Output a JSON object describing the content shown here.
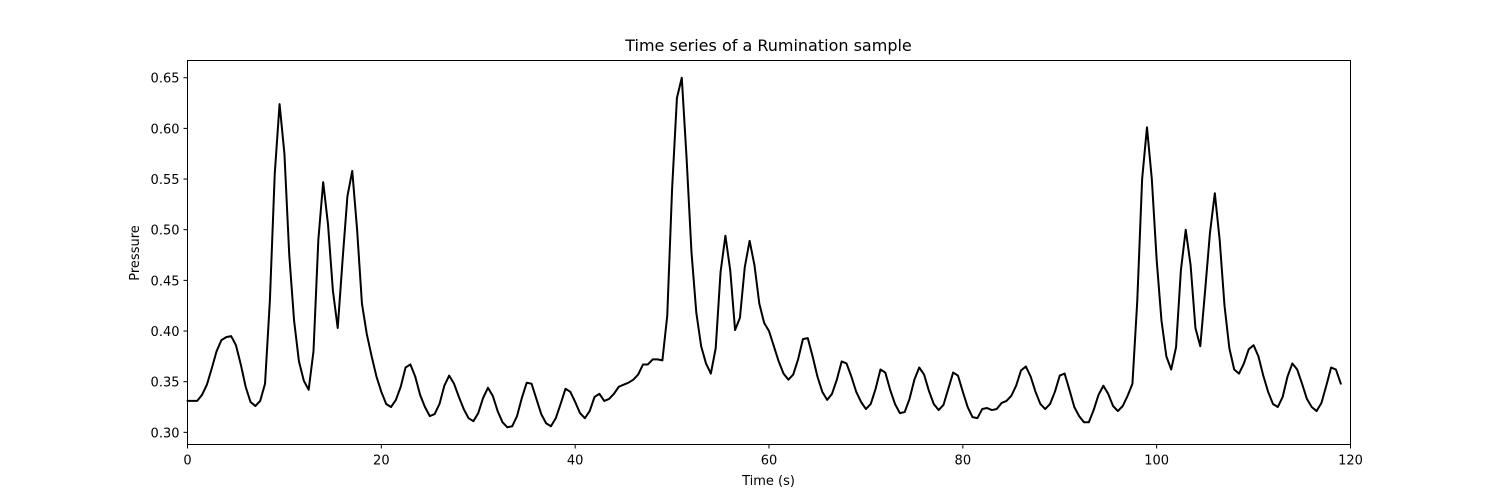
{
  "chart_data": {
    "type": "line",
    "title": "Time series of a Rumination sample",
    "xlabel": "Time (s)",
    "ylabel": "Pressure",
    "xlim": [
      0,
      120
    ],
    "ylim": [
      0.288,
      0.667
    ],
    "xticks": [
      0,
      20,
      40,
      60,
      80,
      100,
      120
    ],
    "yticks": [
      0.3,
      0.35,
      0.4,
      0.45,
      0.5,
      0.55,
      0.6,
      0.65
    ],
    "grid": false,
    "line_color": "#000000",
    "series": [
      {
        "points": [
          [
            0.0,
            0.331
          ],
          [
            0.5,
            0.331
          ],
          [
            1.0,
            0.331
          ],
          [
            1.5,
            0.337
          ],
          [
            2.0,
            0.347
          ],
          [
            2.5,
            0.363
          ],
          [
            3.0,
            0.38
          ],
          [
            3.5,
            0.391
          ],
          [
            4.0,
            0.394
          ],
          [
            4.5,
            0.395
          ],
          [
            5.0,
            0.386
          ],
          [
            5.5,
            0.367
          ],
          [
            6.0,
            0.345
          ],
          [
            6.5,
            0.33
          ],
          [
            7.0,
            0.326
          ],
          [
            7.5,
            0.331
          ],
          [
            8.0,
            0.348
          ],
          [
            8.5,
            0.43
          ],
          [
            9.0,
            0.555
          ],
          [
            9.5,
            0.624
          ],
          [
            10.0,
            0.575
          ],
          [
            10.5,
            0.475
          ],
          [
            11.0,
            0.41
          ],
          [
            11.5,
            0.37
          ],
          [
            12.0,
            0.351
          ],
          [
            12.5,
            0.342
          ],
          [
            13.0,
            0.38
          ],
          [
            13.5,
            0.49
          ],
          [
            14.0,
            0.547
          ],
          [
            14.5,
            0.505
          ],
          [
            15.0,
            0.44
          ],
          [
            15.5,
            0.403
          ],
          [
            16.0,
            0.47
          ],
          [
            16.5,
            0.533
          ],
          [
            17.0,
            0.558
          ],
          [
            17.5,
            0.5
          ],
          [
            18.0,
            0.427
          ],
          [
            18.5,
            0.397
          ],
          [
            19.0,
            0.375
          ],
          [
            19.5,
            0.355
          ],
          [
            20.0,
            0.34
          ],
          [
            20.5,
            0.328
          ],
          [
            21.0,
            0.325
          ],
          [
            21.5,
            0.332
          ],
          [
            22.0,
            0.345
          ],
          [
            22.5,
            0.364
          ],
          [
            23.0,
            0.367
          ],
          [
            23.5,
            0.355
          ],
          [
            24.0,
            0.337
          ],
          [
            24.5,
            0.325
          ],
          [
            25.0,
            0.316
          ],
          [
            25.5,
            0.318
          ],
          [
            26.0,
            0.328
          ],
          [
            26.5,
            0.346
          ],
          [
            27.0,
            0.356
          ],
          [
            27.5,
            0.348
          ],
          [
            28.0,
            0.335
          ],
          [
            28.5,
            0.323
          ],
          [
            29.0,
            0.314
          ],
          [
            29.5,
            0.311
          ],
          [
            30.0,
            0.319
          ],
          [
            30.5,
            0.334
          ],
          [
            31.0,
            0.344
          ],
          [
            31.5,
            0.336
          ],
          [
            32.0,
            0.321
          ],
          [
            32.5,
            0.31
          ],
          [
            33.0,
            0.305
          ],
          [
            33.5,
            0.306
          ],
          [
            34.0,
            0.316
          ],
          [
            34.5,
            0.334
          ],
          [
            35.0,
            0.349
          ],
          [
            35.5,
            0.348
          ],
          [
            36.0,
            0.333
          ],
          [
            36.5,
            0.318
          ],
          [
            37.0,
            0.309
          ],
          [
            37.5,
            0.306
          ],
          [
            38.0,
            0.314
          ],
          [
            38.5,
            0.328
          ],
          [
            39.0,
            0.343
          ],
          [
            39.5,
            0.34
          ],
          [
            40.0,
            0.33
          ],
          [
            40.5,
            0.319
          ],
          [
            41.0,
            0.314
          ],
          [
            41.5,
            0.321
          ],
          [
            42.0,
            0.335
          ],
          [
            42.5,
            0.338
          ],
          [
            43.0,
            0.331
          ],
          [
            43.5,
            0.333
          ],
          [
            44.0,
            0.338
          ],
          [
            44.5,
            0.345
          ],
          [
            45.0,
            0.347
          ],
          [
            45.5,
            0.349
          ],
          [
            46.0,
            0.352
          ],
          [
            46.5,
            0.357
          ],
          [
            47.0,
            0.367
          ],
          [
            47.5,
            0.367
          ],
          [
            48.0,
            0.372
          ],
          [
            48.5,
            0.372
          ],
          [
            49.0,
            0.371
          ],
          [
            49.5,
            0.415
          ],
          [
            50.0,
            0.54
          ],
          [
            50.5,
            0.63
          ],
          [
            51.0,
            0.65
          ],
          [
            51.5,
            0.57
          ],
          [
            52.0,
            0.478
          ],
          [
            52.5,
            0.418
          ],
          [
            53.0,
            0.385
          ],
          [
            53.5,
            0.368
          ],
          [
            54.0,
            0.358
          ],
          [
            54.5,
            0.383
          ],
          [
            55.0,
            0.458
          ],
          [
            55.5,
            0.494
          ],
          [
            56.0,
            0.46
          ],
          [
            56.5,
            0.401
          ],
          [
            57.0,
            0.413
          ],
          [
            57.5,
            0.463
          ],
          [
            58.0,
            0.489
          ],
          [
            58.5,
            0.465
          ],
          [
            59.0,
            0.427
          ],
          [
            59.5,
            0.408
          ],
          [
            60.0,
            0.4
          ],
          [
            60.5,
            0.385
          ],
          [
            61.0,
            0.37
          ],
          [
            61.5,
            0.358
          ],
          [
            62.0,
            0.352
          ],
          [
            62.5,
            0.357
          ],
          [
            63.0,
            0.372
          ],
          [
            63.5,
            0.392
          ],
          [
            64.0,
            0.393
          ],
          [
            64.5,
            0.375
          ],
          [
            65.0,
            0.355
          ],
          [
            65.5,
            0.34
          ],
          [
            66.0,
            0.332
          ],
          [
            66.5,
            0.338
          ],
          [
            67.0,
            0.352
          ],
          [
            67.5,
            0.37
          ],
          [
            68.0,
            0.368
          ],
          [
            68.5,
            0.355
          ],
          [
            69.0,
            0.34
          ],
          [
            69.5,
            0.33
          ],
          [
            70.0,
            0.323
          ],
          [
            70.5,
            0.328
          ],
          [
            71.0,
            0.343
          ],
          [
            71.5,
            0.362
          ],
          [
            72.0,
            0.359
          ],
          [
            72.5,
            0.342
          ],
          [
            73.0,
            0.328
          ],
          [
            73.5,
            0.319
          ],
          [
            74.0,
            0.32
          ],
          [
            74.5,
            0.333
          ],
          [
            75.0,
            0.352
          ],
          [
            75.5,
            0.364
          ],
          [
            76.0,
            0.357
          ],
          [
            76.5,
            0.341
          ],
          [
            77.0,
            0.328
          ],
          [
            77.5,
            0.322
          ],
          [
            78.0,
            0.327
          ],
          [
            78.5,
            0.343
          ],
          [
            79.0,
            0.359
          ],
          [
            79.5,
            0.356
          ],
          [
            80.0,
            0.34
          ],
          [
            80.5,
            0.325
          ],
          [
            81.0,
            0.315
          ],
          [
            81.5,
            0.314
          ],
          [
            82.0,
            0.323
          ],
          [
            82.5,
            0.324
          ],
          [
            83.0,
            0.322
          ],
          [
            83.5,
            0.323
          ],
          [
            84.0,
            0.329
          ],
          [
            84.5,
            0.331
          ],
          [
            85.0,
            0.336
          ],
          [
            85.5,
            0.346
          ],
          [
            86.0,
            0.361
          ],
          [
            86.5,
            0.365
          ],
          [
            87.0,
            0.355
          ],
          [
            87.5,
            0.34
          ],
          [
            88.0,
            0.328
          ],
          [
            88.5,
            0.323
          ],
          [
            89.0,
            0.328
          ],
          [
            89.5,
            0.34
          ],
          [
            90.0,
            0.356
          ],
          [
            90.5,
            0.358
          ],
          [
            91.0,
            0.342
          ],
          [
            91.5,
            0.325
          ],
          [
            92.0,
            0.316
          ],
          [
            92.5,
            0.31
          ],
          [
            93.0,
            0.31
          ],
          [
            93.5,
            0.322
          ],
          [
            94.0,
            0.337
          ],
          [
            94.5,
            0.346
          ],
          [
            95.0,
            0.338
          ],
          [
            95.5,
            0.326
          ],
          [
            96.0,
            0.321
          ],
          [
            96.5,
            0.326
          ],
          [
            97.0,
            0.336
          ],
          [
            97.5,
            0.348
          ],
          [
            98.0,
            0.43
          ],
          [
            98.5,
            0.55
          ],
          [
            99.0,
            0.601
          ],
          [
            99.5,
            0.55
          ],
          [
            100.0,
            0.47
          ],
          [
            100.5,
            0.41
          ],
          [
            101.0,
            0.375
          ],
          [
            101.5,
            0.362
          ],
          [
            102.0,
            0.384
          ],
          [
            102.5,
            0.46
          ],
          [
            103.0,
            0.5
          ],
          [
            103.5,
            0.465
          ],
          [
            104.0,
            0.403
          ],
          [
            104.5,
            0.385
          ],
          [
            105.0,
            0.44
          ],
          [
            105.5,
            0.497
          ],
          [
            106.0,
            0.536
          ],
          [
            106.5,
            0.49
          ],
          [
            107.0,
            0.425
          ],
          [
            107.5,
            0.383
          ],
          [
            108.0,
            0.362
          ],
          [
            108.5,
            0.358
          ],
          [
            109.0,
            0.368
          ],
          [
            109.5,
            0.382
          ],
          [
            110.0,
            0.386
          ],
          [
            110.5,
            0.375
          ],
          [
            111.0,
            0.356
          ],
          [
            111.5,
            0.34
          ],
          [
            112.0,
            0.328
          ],
          [
            112.5,
            0.325
          ],
          [
            113.0,
            0.335
          ],
          [
            113.5,
            0.355
          ],
          [
            114.0,
            0.368
          ],
          [
            114.5,
            0.362
          ],
          [
            115.0,
            0.348
          ],
          [
            115.5,
            0.333
          ],
          [
            116.0,
            0.325
          ],
          [
            116.5,
            0.321
          ],
          [
            117.0,
            0.329
          ],
          [
            117.5,
            0.346
          ],
          [
            118.0,
            0.364
          ],
          [
            118.5,
            0.362
          ],
          [
            119.0,
            0.348
          ]
        ]
      }
    ]
  }
}
